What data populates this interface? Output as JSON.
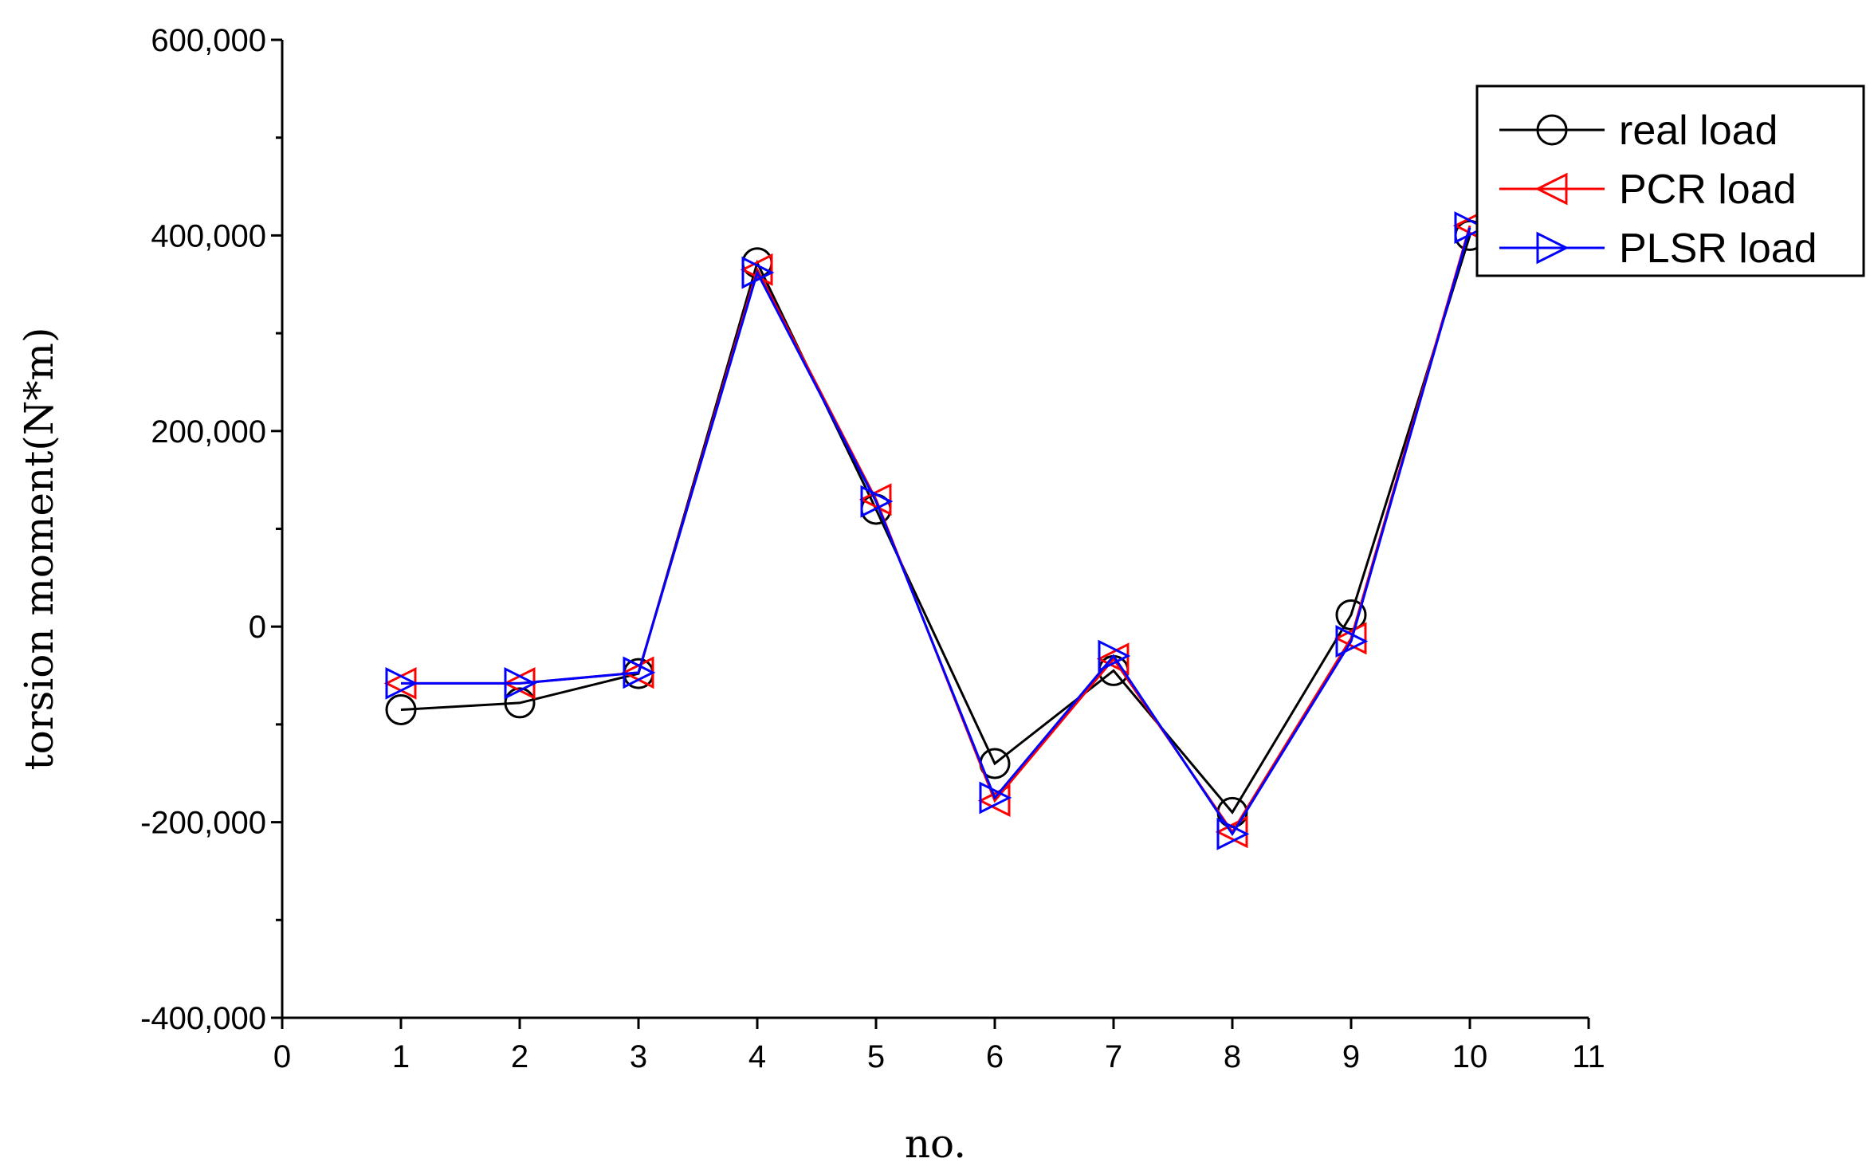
{
  "chart_data": {
    "type": "line",
    "title": "",
    "xlabel": "no.",
    "ylabel": "torsion moment(N*m)",
    "xlim": [
      0,
      11
    ],
    "ylim": [
      -400000,
      600000
    ],
    "x_ticks": [
      0,
      1,
      2,
      3,
      4,
      5,
      6,
      7,
      8,
      9,
      10,
      11
    ],
    "x_tick_labels": [
      "0",
      "1",
      "2",
      "3",
      "4",
      "5",
      "6",
      "7",
      "8",
      "9",
      "10",
      "11"
    ],
    "y_ticks": [
      -400000,
      -200000,
      0,
      200000,
      400000,
      600000
    ],
    "y_tick_labels": [
      "-400,000",
      "-200,000",
      "0",
      "200,000",
      "400,000",
      "600,000"
    ],
    "grid": false,
    "legend_position": "top-right",
    "x": [
      1,
      2,
      3,
      4,
      5,
      6,
      7,
      8,
      9,
      10
    ],
    "series": [
      {
        "name": "real load",
        "color": "#000000",
        "marker": "circle",
        "values": [
          -85000,
          -78000,
          -48000,
          372000,
          120000,
          -140000,
          -45000,
          -190000,
          12000,
          400000
        ]
      },
      {
        "name": "PCR load",
        "color": "#ff0000",
        "marker": "triangle-left",
        "values": [
          -58000,
          -58000,
          -47000,
          365000,
          130000,
          -178000,
          -33000,
          -210000,
          -12000,
          410000
        ]
      },
      {
        "name": "PLSR load",
        "color": "#0000ff",
        "marker": "triangle-right",
        "values": [
          -58000,
          -58000,
          -47000,
          362000,
          128000,
          -175000,
          -30000,
          -212000,
          -15000,
          408000
        ]
      }
    ]
  }
}
